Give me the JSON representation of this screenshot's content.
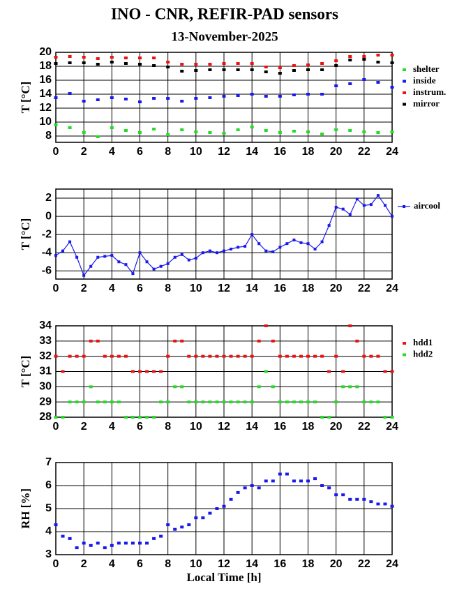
{
  "chart_data": [
    {
      "type": "scatter",
      "title": "INO - CNR, REFIR-PAD sensors",
      "subtitle": "13-November-2025",
      "ylabel": "T [°C]",
      "x": [
        0,
        1,
        2,
        3,
        4,
        5,
        6,
        7,
        8,
        9,
        10,
        11,
        12,
        13,
        14,
        15,
        16,
        17,
        18,
        19,
        20,
        21,
        22,
        23,
        24
      ],
      "series": [
        {
          "name": "shelter",
          "color": "#22dd22",
          "values": [
            9.6,
            9.2,
            8.5,
            7.9,
            9.2,
            8.8,
            8.5,
            9.0,
            8.2,
            8.9,
            8.6,
            8.5,
            8.4,
            8.9,
            9.3,
            8.8,
            8.5,
            8.7,
            8.6,
            8.3,
            8.9,
            8.8,
            8.6,
            8.5,
            8.6
          ]
        },
        {
          "name": "inside",
          "color": "#1a1aee",
          "values": [
            13.5,
            14.1,
            13.0,
            13.2,
            13.5,
            13.3,
            12.9,
            13.4,
            13.4,
            13.0,
            13.4,
            13.5,
            13.7,
            13.8,
            14.0,
            13.7,
            13.7,
            13.9,
            14.0,
            14.0,
            15.2,
            15.5,
            16.1,
            15.7,
            15.0
          ]
        },
        {
          "name": "instrum.",
          "color": "#ee1111",
          "values": [
            19.3,
            19.4,
            19.3,
            19.1,
            19.3,
            19.2,
            19.2,
            19.2,
            18.6,
            18.3,
            18.3,
            18.3,
            18.4,
            18.4,
            18.4,
            17.9,
            17.8,
            18.1,
            18.2,
            18.4,
            18.8,
            19.4,
            19.4,
            19.6,
            19.6
          ]
        },
        {
          "name": "mirror",
          "color": "#000000",
          "values": [
            18.4,
            18.5,
            18.5,
            18.3,
            18.6,
            18.4,
            18.3,
            18.1,
            17.9,
            17.3,
            17.4,
            17.5,
            17.5,
            17.5,
            17.5,
            17.2,
            17.0,
            17.4,
            17.5,
            17.5,
            18.1,
            18.9,
            19.0,
            18.6,
            18.5
          ]
        }
      ],
      "xlim": [
        0,
        24
      ],
      "xticks": [
        0,
        2,
        4,
        6,
        8,
        10,
        12,
        14,
        16,
        18,
        20,
        22,
        24
      ],
      "ylim": [
        7.1,
        20
      ],
      "yticks": [
        8,
        10,
        12,
        14,
        16,
        18,
        20
      ],
      "grid": true,
      "legend": "outside-right"
    },
    {
      "type": "line",
      "ylabel": "T [°C]",
      "x": [
        0,
        0.5,
        1,
        1.5,
        2,
        2.5,
        3,
        3.5,
        4,
        4.5,
        5,
        5.5,
        6,
        6.5,
        7,
        7.5,
        8,
        8.5,
        9,
        9.5,
        10,
        10.5,
        11,
        11.5,
        12,
        12.5,
        13,
        13.5,
        14,
        14.5,
        15,
        15.5,
        16,
        16.5,
        17,
        17.5,
        18,
        18.5,
        19,
        19.5,
        20,
        20.5,
        21,
        21.5,
        22,
        22.5,
        23,
        23.5,
        24
      ],
      "series": [
        {
          "name": "aircool",
          "color": "#1a1aee",
          "values": [
            -4.3,
            -3.8,
            -2.8,
            -4.5,
            -6.5,
            -5.5,
            -4.5,
            -4.4,
            -4.3,
            -5.0,
            -5.3,
            -6.3,
            -4.0,
            -5.0,
            -5.8,
            -5.5,
            -5.2,
            -4.5,
            -4.2,
            -4.8,
            -4.6,
            -4.0,
            -3.8,
            -4.0,
            -3.8,
            -3.6,
            -3.4,
            -3.3,
            -2.0,
            -3.0,
            -3.8,
            -3.9,
            -3.4,
            -3.0,
            -2.6,
            -2.9,
            -3.0,
            -3.6,
            -2.8,
            -1.0,
            1.0,
            0.8,
            0.2,
            1.9,
            1.2,
            1.3,
            2.3,
            1.2,
            0.0
          ]
        }
      ],
      "xlim": [
        0,
        24
      ],
      "xticks": [
        0,
        2,
        4,
        6,
        8,
        10,
        12,
        14,
        16,
        18,
        20,
        22,
        24
      ],
      "ylim": [
        -6.9,
        3
      ],
      "yticks": [
        -6,
        -4,
        -2,
        0,
        2
      ],
      "grid": true,
      "legend": "outside-right"
    },
    {
      "type": "scatter",
      "ylabel": "T [°C]",
      "x": [
        0,
        0.5,
        1,
        1.5,
        2,
        2.5,
        3,
        3.5,
        4,
        4.5,
        5,
        5.5,
        6,
        6.5,
        7,
        7.5,
        8,
        8.5,
        9,
        9.5,
        10,
        10.5,
        11,
        11.5,
        12,
        12.5,
        13,
        13.5,
        14,
        14.5,
        15,
        15.5,
        16,
        16.5,
        17,
        17.5,
        18,
        18.5,
        19,
        19.5,
        20,
        20.5,
        21,
        21.5,
        22,
        22.5,
        23,
        23.5,
        24
      ],
      "series": [
        {
          "name": "hdd1",
          "color": "#ee1111",
          "values": [
            32,
            31,
            32,
            32,
            32,
            33,
            33,
            32,
            32,
            32,
            32,
            31,
            31,
            31,
            31,
            31,
            32,
            33,
            33,
            32,
            32,
            32,
            32,
            32,
            32,
            32,
            32,
            32,
            32,
            33,
            34,
            33,
            32,
            32,
            32,
            32,
            32,
            32,
            32,
            31,
            32,
            31,
            34,
            33,
            32,
            32,
            32,
            31,
            31
          ]
        },
        {
          "name": "hdd2",
          "color": "#22dd22",
          "values": [
            28,
            28,
            29,
            29,
            29,
            30,
            29,
            29,
            29,
            29,
            28,
            28,
            28,
            28,
            28,
            29,
            29,
            30,
            30,
            29,
            29,
            29,
            29,
            29,
            29,
            29,
            29,
            29,
            29,
            30,
            31,
            30,
            29,
            29,
            29,
            29,
            29,
            29,
            28,
            28,
            29,
            30,
            30,
            30,
            29,
            29,
            29,
            28,
            28
          ]
        }
      ],
      "xlim": [
        0,
        24
      ],
      "xticks": [
        0,
        2,
        4,
        6,
        8,
        10,
        12,
        14,
        16,
        18,
        20,
        22,
        24
      ],
      "ylim": [
        28,
        34
      ],
      "yticks": [
        28,
        29,
        30,
        31,
        32,
        33,
        34
      ],
      "grid": true,
      "legend": "outside-right"
    },
    {
      "type": "scatter",
      "ylabel": "RH [%]",
      "xlabel": "Local Time [h]",
      "x": [
        0,
        0.5,
        1,
        1.5,
        2,
        2.5,
        3,
        3.5,
        4,
        4.5,
        5,
        5.5,
        6,
        6.5,
        7,
        7.5,
        8,
        8.5,
        9,
        9.5,
        10,
        10.5,
        11,
        11.5,
        12,
        12.5,
        13,
        13.5,
        14,
        14.5,
        15,
        15.5,
        16,
        16.5,
        17,
        17.5,
        18,
        18.5,
        19,
        19.5,
        20,
        20.5,
        21,
        21.5,
        22,
        22.5,
        23,
        23.5,
        24
      ],
      "values": [
        4.3,
        3.8,
        3.7,
        3.3,
        3.5,
        3.4,
        3.5,
        3.3,
        3.4,
        3.5,
        3.5,
        3.5,
        3.5,
        3.5,
        3.7,
        3.8,
        4.3,
        4.1,
        4.2,
        4.3,
        4.6,
        4.6,
        4.8,
        5.0,
        5.1,
        5.4,
        5.7,
        5.9,
        6.0,
        5.9,
        6.2,
        6.2,
        6.5,
        6.5,
        6.2,
        6.2,
        6.2,
        6.3,
        6.0,
        5.9,
        5.6,
        5.6,
        5.4,
        5.4,
        5.4,
        5.3,
        5.2,
        5.2,
        5.1
      ],
      "color": "#1a1aee",
      "xlim": [
        0,
        24
      ],
      "xticks": [
        0,
        2,
        4,
        6,
        8,
        10,
        12,
        14,
        16,
        18,
        20,
        22,
        24
      ],
      "ylim": [
        3,
        7
      ],
      "yticks": [
        3,
        4,
        5,
        6,
        7
      ],
      "grid": true
    }
  ]
}
